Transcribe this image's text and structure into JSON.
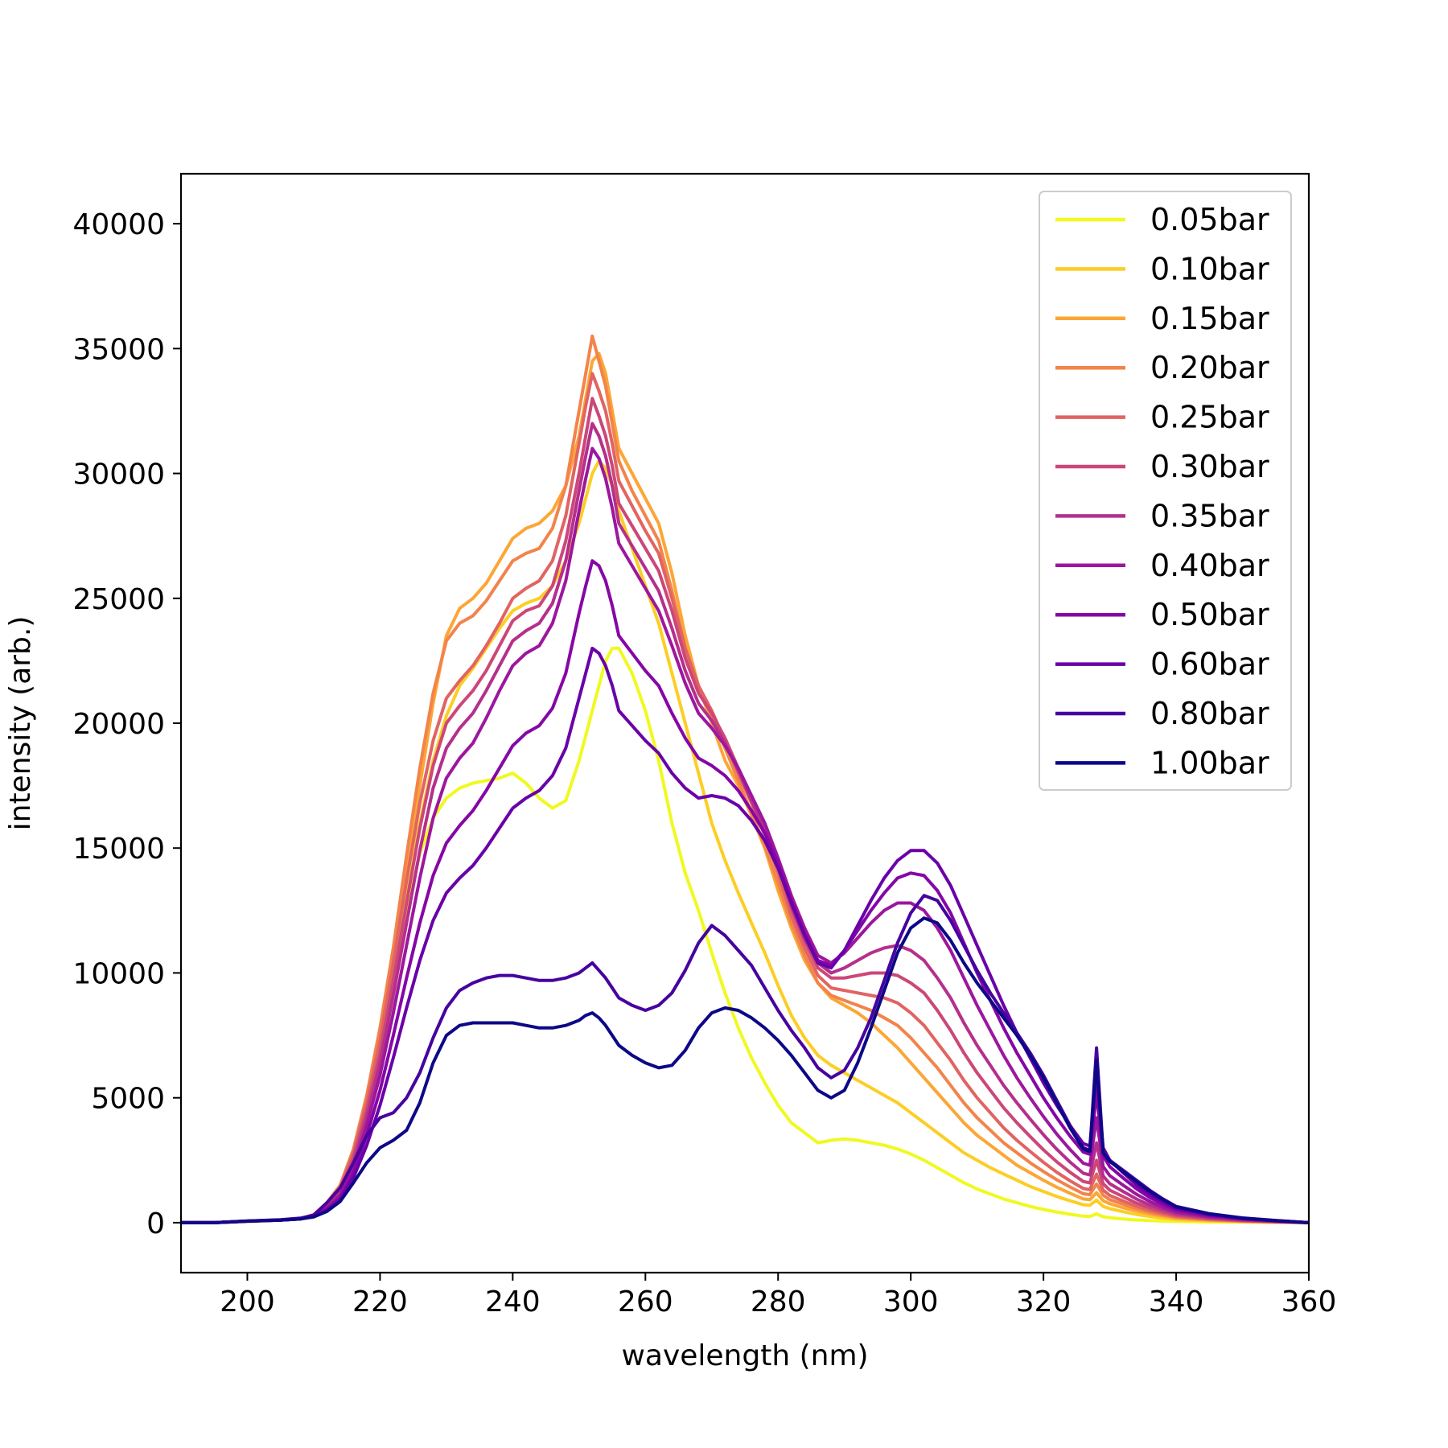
{
  "chart_data": {
    "type": "line",
    "title": "",
    "xlabel": "wavelength (nm)",
    "ylabel": "intensity (arb.)",
    "xlim": [
      190,
      360
    ],
    "ylim": [
      -2000,
      42000
    ],
    "xticks": [
      200,
      220,
      240,
      260,
      280,
      300,
      320,
      340,
      360
    ],
    "yticks": [
      0,
      5000,
      10000,
      15000,
      20000,
      25000,
      30000,
      35000,
      40000
    ],
    "grid": false,
    "legend_position": "top-right",
    "x": [
      190,
      195,
      200,
      205,
      208,
      210,
      212,
      214,
      216,
      218,
      220,
      222,
      224,
      226,
      228,
      230,
      232,
      234,
      236,
      238,
      240,
      242,
      244,
      246,
      248,
      250,
      251,
      252,
      253,
      254,
      255,
      256,
      258,
      260,
      262,
      264,
      266,
      268,
      270,
      272,
      274,
      276,
      278,
      280,
      282,
      284,
      286,
      288,
      290,
      292,
      294,
      296,
      298,
      300,
      302,
      304,
      306,
      308,
      310,
      312,
      314,
      316,
      318,
      320,
      322,
      324,
      326,
      327,
      328,
      329,
      330,
      332,
      334,
      336,
      338,
      340,
      345,
      350,
      355,
      360
    ],
    "series": [
      {
        "name": "0.05bar",
        "color": "#f0f921",
        "values": [
          0,
          0,
          50,
          100,
          150,
          300,
          600,
          1200,
          2500,
          4400,
          6800,
          9500,
          12400,
          14800,
          16200,
          17000,
          17400,
          17600,
          17700,
          17800,
          18000,
          17600,
          17000,
          16600,
          16900,
          18500,
          19500,
          20500,
          21500,
          22500,
          23000,
          23000,
          22000,
          20500,
          18500,
          16000,
          14000,
          12500,
          10800,
          9200,
          7800,
          6600,
          5600,
          4700,
          4000,
          3600,
          3200,
          3300,
          3350,
          3300,
          3200,
          3100,
          2950,
          2750,
          2500,
          2200,
          1900,
          1600,
          1350,
          1150,
          950,
          800,
          650,
          530,
          430,
          340,
          260,
          250,
          350,
          240,
          200,
          150,
          110,
          85,
          65,
          50,
          30,
          20,
          10,
          0
        ]
      },
      {
        "name": "0.10bar",
        "color": "#fcce25",
        "values": [
          0,
          0,
          50,
          100,
          150,
          300,
          700,
          1300,
          2700,
          4600,
          7000,
          10000,
          13200,
          16000,
          18500,
          20300,
          21500,
          22200,
          23000,
          23800,
          24500,
          24800,
          25000,
          25500,
          26500,
          28000,
          29000,
          30000,
          30500,
          30200,
          29500,
          28500,
          27000,
          25500,
          24000,
          22000,
          20000,
          18000,
          16000,
          14500,
          13200,
          12000,
          10800,
          9500,
          8300,
          7400,
          6700,
          6300,
          6000,
          5700,
          5400,
          5100,
          4800,
          4400,
          4000,
          3600,
          3200,
          2800,
          2500,
          2200,
          1950,
          1700,
          1450,
          1250,
          1050,
          880,
          720,
          700,
          900,
          650,
          560,
          440,
          330,
          250,
          180,
          120,
          70,
          40,
          20,
          0
        ]
      },
      {
        "name": "0.15bar",
        "color": "#fca636",
        "values": [
          0,
          0,
          50,
          100,
          150,
          300,
          750,
          1400,
          2900,
          5000,
          7600,
          10700,
          14000,
          17500,
          20800,
          23500,
          24600,
          25000,
          25600,
          26500,
          27400,
          27800,
          28000,
          28500,
          29500,
          31500,
          33000,
          34500,
          34800,
          34000,
          32500,
          31000,
          30000,
          29000,
          28000,
          26000,
          23500,
          21500,
          20000,
          18500,
          17500,
          16300,
          15000,
          13300,
          11800,
          10500,
          9600,
          9000,
          8700,
          8400,
          8000,
          7500,
          7000,
          6400,
          5800,
          5200,
          4600,
          4000,
          3500,
          3100,
          2700,
          2300,
          2000,
          1700,
          1420,
          1180,
          950,
          920,
          1200,
          880,
          760,
          600,
          460,
          350,
          260,
          180,
          100,
          55,
          25,
          0
        ]
      },
      {
        "name": "0.20bar",
        "color": "#f2844b",
        "values": [
          0,
          0,
          60,
          110,
          160,
          320,
          800,
          1500,
          2950,
          5100,
          7800,
          11000,
          14700,
          18200,
          21200,
          23300,
          24000,
          24300,
          24900,
          25700,
          26500,
          26800,
          27000,
          27800,
          29500,
          32500,
          34000,
          35500,
          34500,
          33500,
          32000,
          30500,
          29300,
          28300,
          27300,
          25300,
          23000,
          21300,
          20300,
          19000,
          17700,
          16400,
          15100,
          13600,
          12000,
          10700,
          9600,
          9100,
          8900,
          8700,
          8500,
          8200,
          7900,
          7400,
          6800,
          6200,
          5500,
          4800,
          4200,
          3700,
          3200,
          2800,
          2400,
          2050,
          1720,
          1430,
          1160,
          1120,
          1550,
          1100,
          920,
          740,
          560,
          420,
          310,
          210,
          120,
          65,
          30,
          0
        ]
      },
      {
        "name": "0.25bar",
        "color": "#e16462",
        "values": [
          0,
          0,
          60,
          110,
          160,
          320,
          750,
          1400,
          2800,
          4800,
          7300,
          10400,
          13700,
          16800,
          19300,
          21000,
          21700,
          22300,
          23100,
          24000,
          25000,
          25400,
          25700,
          26500,
          28300,
          31200,
          32700,
          34000,
          33300,
          32500,
          31200,
          29700,
          28700,
          27700,
          26800,
          25000,
          23000,
          21500,
          20500,
          19300,
          18000,
          16800,
          15500,
          14000,
          12300,
          11000,
          9900,
          9400,
          9300,
          9200,
          9100,
          9000,
          8800,
          8400,
          7900,
          7200,
          6500,
          5700,
          5000,
          4400,
          3800,
          3300,
          2850,
          2420,
          2020,
          1680,
          1370,
          1320,
          1950,
          1300,
          1090,
          870,
          660,
          490,
          360,
          250,
          140,
          75,
          35,
          0
        ]
      },
      {
        "name": "0.30bar",
        "color": "#cc4778",
        "values": [
          0,
          0,
          60,
          110,
          160,
          310,
          700,
          1300,
          2600,
          4500,
          6800,
          9700,
          12800,
          15800,
          18300,
          20000,
          20700,
          21300,
          22100,
          23100,
          24100,
          24500,
          24700,
          25500,
          27300,
          30000,
          31500,
          33000,
          32300,
          31500,
          30300,
          28800,
          27900,
          27000,
          26100,
          24500,
          22600,
          21200,
          20400,
          19400,
          18200,
          17000,
          15800,
          14300,
          12600,
          11300,
          10200,
          9800,
          9800,
          9900,
          10000,
          10000,
          9900,
          9600,
          9200,
          8500,
          7700,
          6800,
          6000,
          5300,
          4600,
          4000,
          3450,
          2920,
          2440,
          2020,
          1650,
          1590,
          2500,
          1560,
          1300,
          1040,
          790,
          590,
          430,
          300,
          170,
          90,
          40,
          0
        ]
      },
      {
        "name": "0.35bar",
        "color": "#b52f8c",
        "values": [
          0,
          0,
          60,
          110,
          160,
          300,
          650,
          1200,
          2400,
          4200,
          6400,
          9100,
          12000,
          14900,
          17400,
          19000,
          19800,
          20400,
          21300,
          22300,
          23300,
          23700,
          24000,
          24800,
          26500,
          29300,
          30700,
          32000,
          31500,
          30700,
          29500,
          28000,
          27100,
          26200,
          25300,
          23800,
          22100,
          20800,
          20100,
          19200,
          18100,
          16900,
          15700,
          14300,
          12700,
          11400,
          10400,
          10000,
          10200,
          10500,
          10800,
          11000,
          11100,
          10900,
          10500,
          9800,
          9000,
          8000,
          7100,
          6300,
          5500,
          4800,
          4150,
          3520,
          2940,
          2430,
          1980,
          1910,
          3200,
          1870,
          1560,
          1250,
          950,
          710,
          520,
          360,
          200,
          110,
          50,
          0
        ]
      },
      {
        "name": "0.40bar",
        "color": "#9c179e",
        "values": [
          0,
          0,
          60,
          100,
          150,
          280,
          600,
          1100,
          2200,
          3900,
          5900,
          8400,
          11100,
          13800,
          16200,
          17800,
          18600,
          19200,
          20200,
          21300,
          22300,
          22800,
          23100,
          24000,
          25700,
          28500,
          29800,
          31000,
          30600,
          29800,
          28600,
          27200,
          26300,
          25400,
          24500,
          23100,
          21600,
          20400,
          19800,
          19100,
          18200,
          17100,
          16000,
          14600,
          13100,
          11800,
          10700,
          10400,
          10800,
          11400,
          12000,
          12500,
          12800,
          12800,
          12500,
          11800,
          10900,
          9800,
          8700,
          7700,
          6700,
          5800,
          5000,
          4250,
          3550,
          2930,
          2380,
          2300,
          4200,
          2250,
          1880,
          1500,
          1140,
          850,
          620,
          430,
          240,
          130,
          60,
          0
        ]
      },
      {
        "name": "0.50bar",
        "color": "#8606a6",
        "values": [
          0,
          0,
          60,
          100,
          150,
          260,
          540,
          1000,
          2000,
          3500,
          5300,
          7500,
          9800,
          12000,
          13900,
          15200,
          15900,
          16500,
          17300,
          18200,
          19100,
          19600,
          19900,
          20600,
          22000,
          24400,
          25500,
          26500,
          26300,
          25700,
          24700,
          23500,
          22800,
          22100,
          21500,
          20400,
          19400,
          18600,
          18300,
          17900,
          17300,
          16500,
          15600,
          14400,
          12900,
          11600,
          10500,
          10300,
          10900,
          11700,
          12500,
          13200,
          13800,
          14000,
          13900,
          13300,
          12400,
          11200,
          10000,
          8900,
          7800,
          6800,
          5900,
          5000,
          4200,
          3470,
          2830,
          2740,
          5200,
          2680,
          2240,
          1790,
          1360,
          1010,
          740,
          510,
          290,
          150,
          70,
          0
        ]
      },
      {
        "name": "0.60bar",
        "color": "#6a00a8",
        "values": [
          0,
          0,
          60,
          100,
          150,
          250,
          500,
          900,
          1800,
          3100,
          4700,
          6600,
          8600,
          10500,
          12100,
          13200,
          13800,
          14300,
          15000,
          15800,
          16600,
          17000,
          17300,
          17900,
          19000,
          21000,
          22000,
          23000,
          22800,
          22300,
          21500,
          20500,
          19900,
          19300,
          18800,
          18000,
          17400,
          17000,
          17100,
          17000,
          16700,
          16100,
          15300,
          14200,
          12800,
          11500,
          10400,
          10200,
          10900,
          11900,
          12900,
          13800,
          14500,
          14900,
          14900,
          14400,
          13500,
          12300,
          11100,
          9900,
          8700,
          7600,
          6600,
          5600,
          4700,
          3890,
          3170,
          3070,
          6000,
          3000,
          2500,
          2000,
          1520,
          1130,
          830,
          570,
          320,
          170,
          80,
          0
        ]
      },
      {
        "name": "0.80bar",
        "color": "#46039f",
        "values": [
          0,
          0,
          70,
          120,
          180,
          300,
          800,
          1400,
          2400,
          3500,
          4200,
          4400,
          5000,
          6000,
          7400,
          8600,
          9300,
          9600,
          9800,
          9900,
          9900,
          9800,
          9700,
          9700,
          9800,
          10000,
          10200,
          10400,
          10100,
          9800,
          9400,
          9000,
          8700,
          8500,
          8700,
          9200,
          10100,
          11200,
          11900,
          11500,
          10900,
          10300,
          9400,
          8500,
          7700,
          7000,
          6200,
          5800,
          6100,
          7000,
          8200,
          9700,
          11200,
          12400,
          13100,
          12900,
          12100,
          11100,
          10100,
          9200,
          8400,
          7600,
          6800,
          5900,
          4900,
          3900,
          3000,
          2900,
          7000,
          2850,
          2500,
          2100,
          1700,
          1300,
          950,
          650,
          360,
          190,
          90,
          0
        ]
      },
      {
        "name": "1.00bar",
        "color": "#0d0887",
        "values": [
          0,
          0,
          60,
          100,
          150,
          230,
          450,
          850,
          1600,
          2400,
          3000,
          3300,
          3700,
          4800,
          6400,
          7500,
          7900,
          8000,
          8000,
          8000,
          8000,
          7900,
          7800,
          7800,
          7900,
          8100,
          8300,
          8400,
          8200,
          7900,
          7500,
          7100,
          6700,
          6400,
          6200,
          6300,
          6900,
          7800,
          8400,
          8600,
          8500,
          8200,
          7800,
          7300,
          6700,
          6000,
          5300,
          5000,
          5300,
          6400,
          7800,
          9300,
          10800,
          11800,
          12200,
          12000,
          11300,
          10400,
          9600,
          8900,
          8200,
          7500,
          6700,
          5800,
          4800,
          3800,
          2950,
          2850,
          6500,
          2800,
          2450,
          2050,
          1650,
          1250,
          920,
          630,
          350,
          180,
          80,
          0
        ]
      }
    ]
  }
}
